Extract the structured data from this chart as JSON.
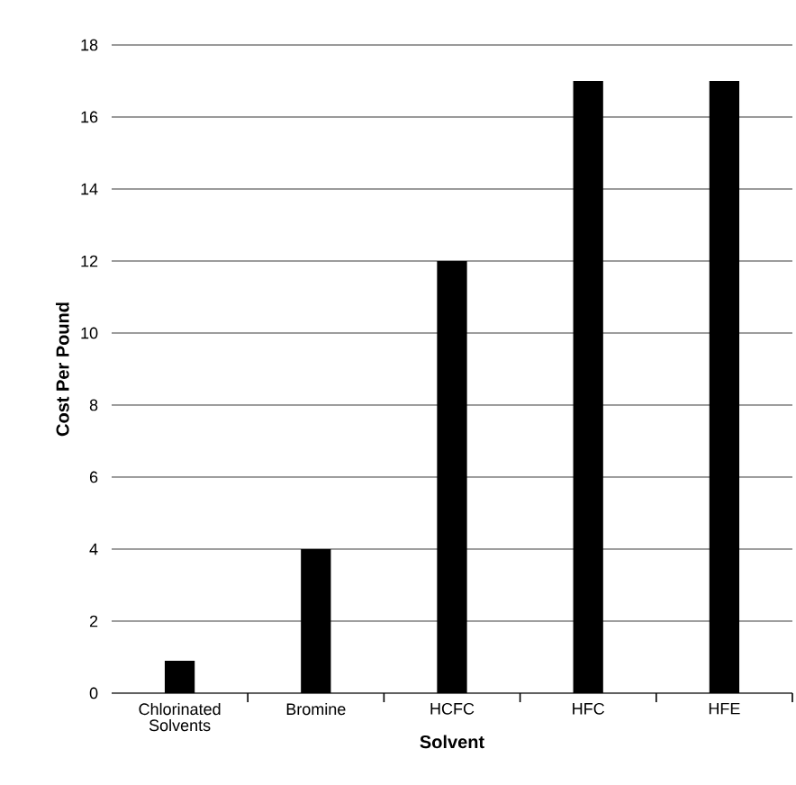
{
  "chart_data": {
    "type": "bar",
    "xlabel": "Solvent",
    "ylabel": "Cost Per Pound",
    "categories": [
      "Chlorinated Solvents",
      "Bromine",
      "HCFC",
      "HFC",
      "HFE"
    ],
    "values": [
      0.9,
      4,
      12,
      17,
      17
    ],
    "color": "#000000",
    "ylim": [
      0,
      18
    ],
    "yticks": [
      0,
      2,
      4,
      6,
      8,
      10,
      12,
      14,
      16,
      18
    ],
    "grid": "y"
  }
}
